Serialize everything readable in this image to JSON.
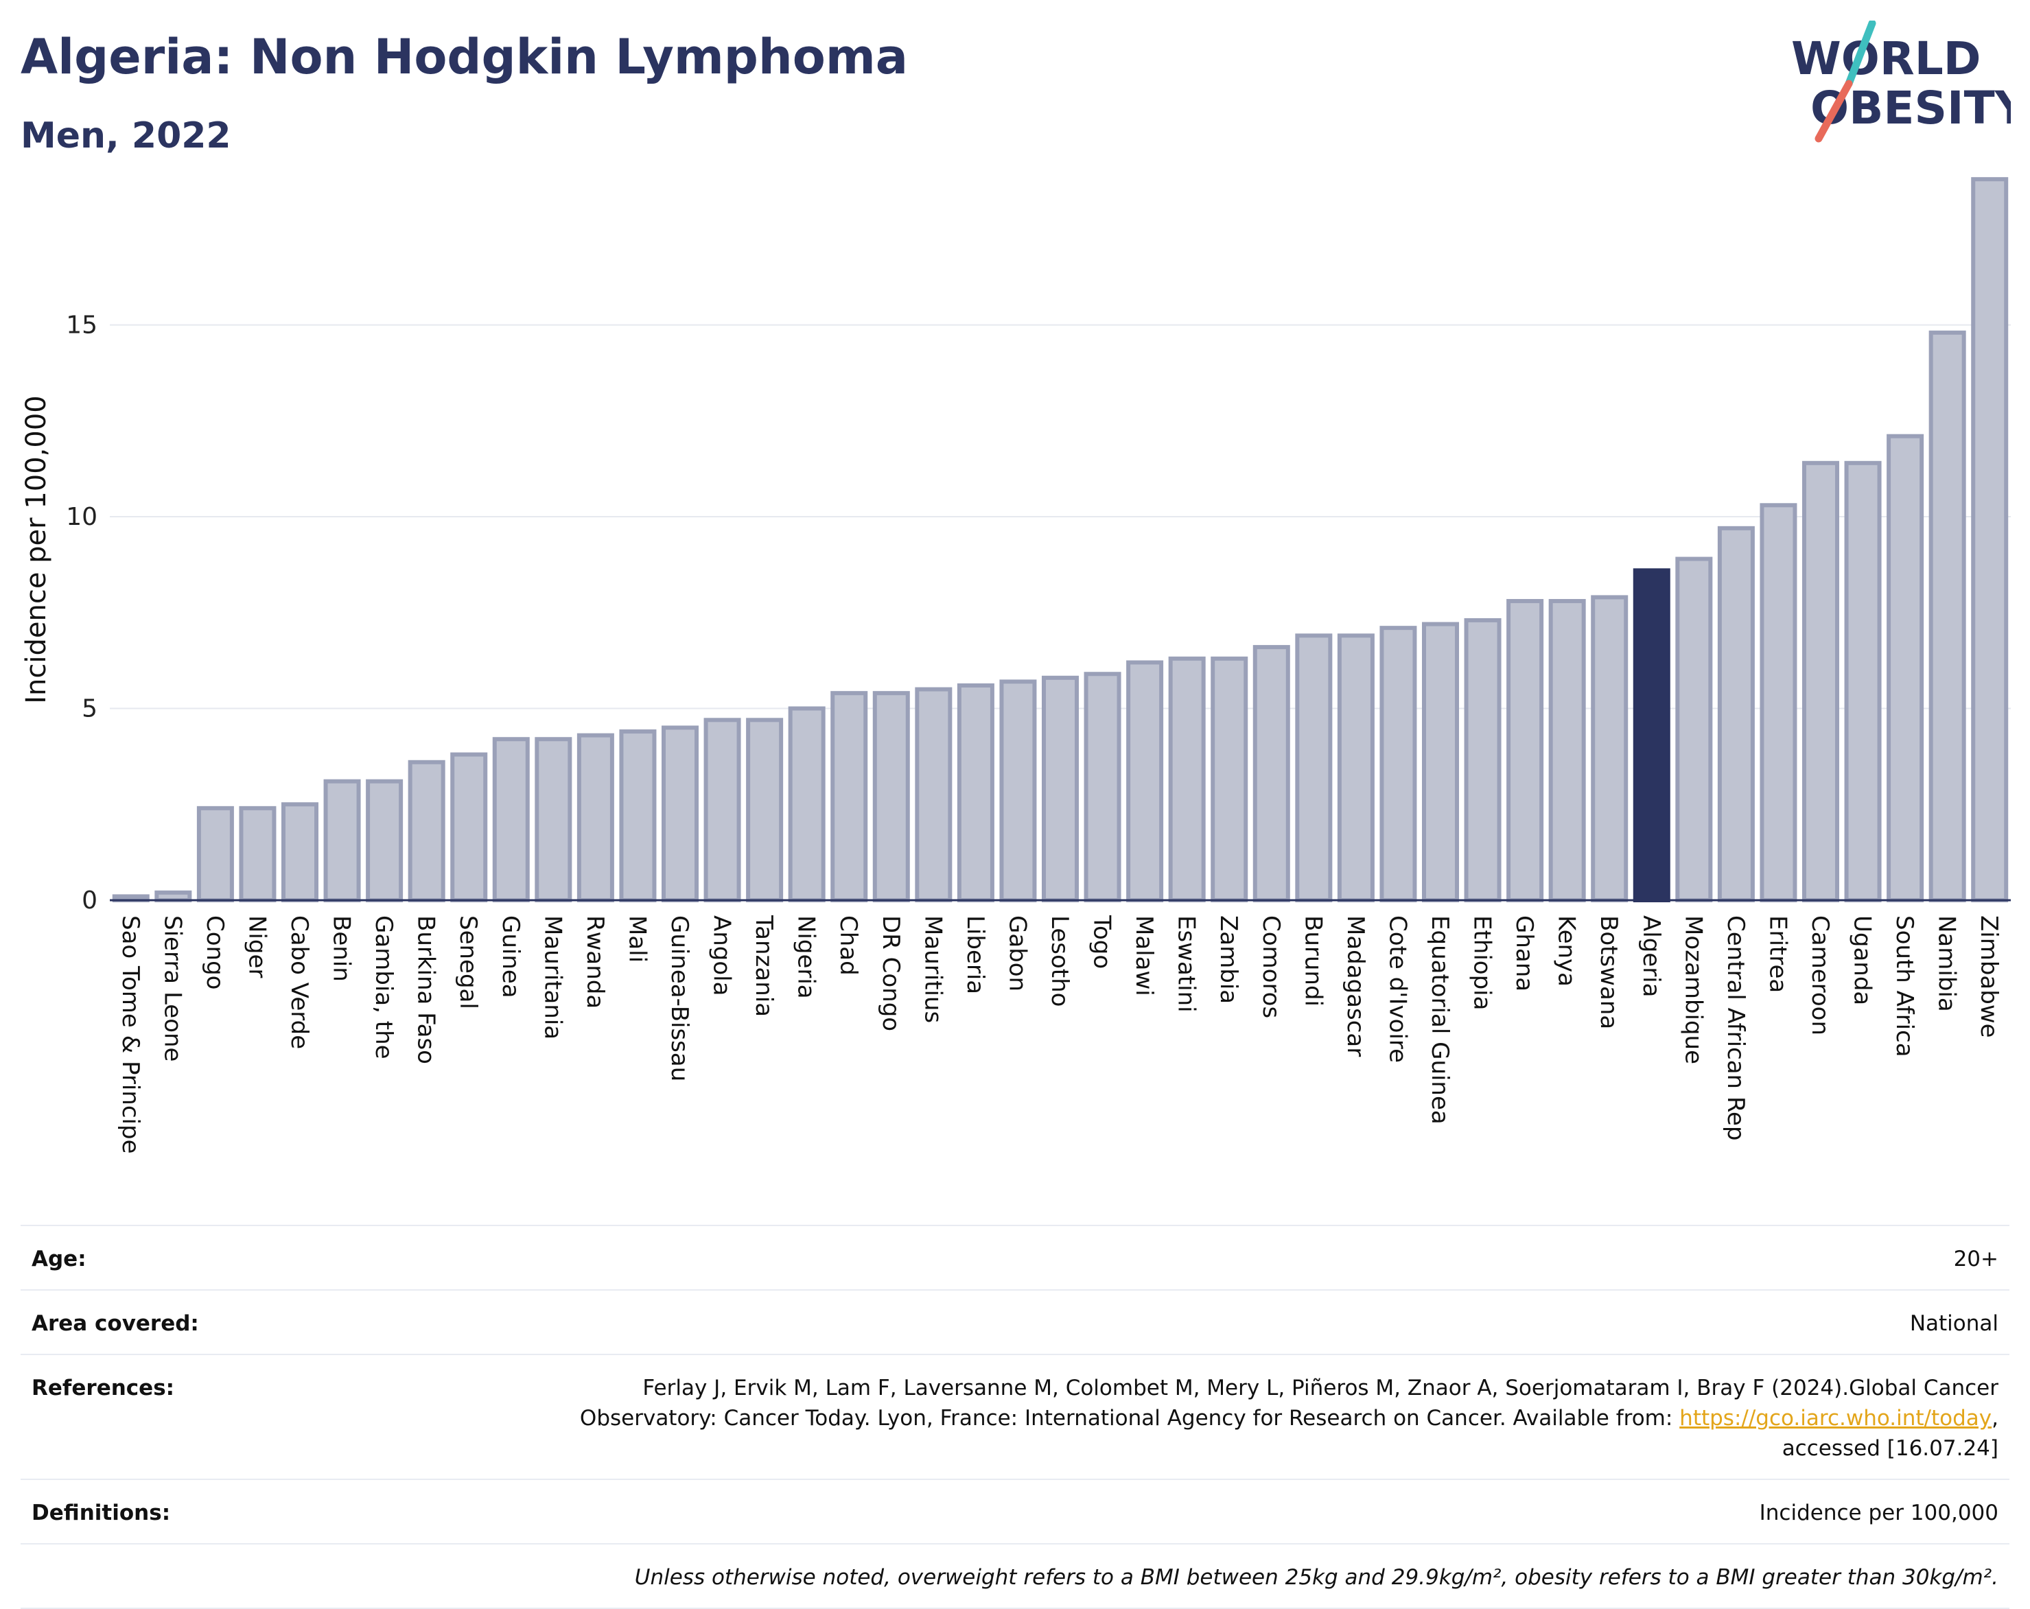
{
  "header": {
    "title": "Algeria: Non Hodgkin Lymphoma",
    "subtitle": "Men, 2022",
    "logo_line1": "WORLD",
    "logo_line2": "OBESITY"
  },
  "colors": {
    "bar": "#bfc3d1",
    "bar_edge": "#9aa0b8",
    "highlight": "#2b3460",
    "grid": "#e6e9ef",
    "text": "#2b3460",
    "link": "#e3a51a",
    "logo_teal": "#3fbfbf",
    "logo_coral": "#e86a5a"
  },
  "chart_data": {
    "type": "bar",
    "title": "Algeria: Non Hodgkin Lymphoma",
    "subtitle": "Men, 2022",
    "ylabel": "Incidence per 100,000",
    "xlabel": "",
    "ylim": [
      0,
      19
    ],
    "yticks": [
      0,
      5,
      10,
      15
    ],
    "grid": true,
    "highlight": "Algeria",
    "categories": [
      "Sao Tome & Principe",
      "Sierra Leone",
      "Congo",
      "Niger",
      "Cabo Verde",
      "Benin",
      "Gambia, the",
      "Burkina Faso",
      "Senegal",
      "Guinea",
      "Mauritania",
      "Rwanda",
      "Mali",
      "Guinea-Bissau",
      "Angola",
      "Tanzania",
      "Nigeria",
      "Chad",
      "DR Congo",
      "Mauritius",
      "Liberia",
      "Gabon",
      "Lesotho",
      "Togo",
      "Malawi",
      "Eswatini",
      "Zambia",
      "Comoros",
      "Burundi",
      "Madagascar",
      "Cote d'Ivoire",
      "Equatorial Guinea",
      "Ethiopia",
      "Ghana",
      "Kenya",
      "Botswana",
      "Algeria",
      "Mozambique",
      "Central African Rep",
      "Eritrea",
      "Cameroon",
      "Uganda",
      "South Africa",
      "Namibia",
      "Zimbabwe"
    ],
    "values": [
      0.1,
      0.2,
      2.4,
      2.4,
      2.5,
      3.1,
      3.1,
      3.6,
      3.8,
      4.2,
      4.2,
      4.3,
      4.4,
      4.5,
      4.7,
      4.7,
      5.0,
      5.4,
      5.4,
      5.5,
      5.6,
      5.7,
      5.8,
      5.9,
      6.2,
      6.3,
      6.3,
      6.6,
      6.9,
      6.9,
      7.1,
      7.2,
      7.3,
      7.8,
      7.8,
      7.9,
      8.6,
      8.9,
      9.7,
      10.3,
      11.4,
      11.4,
      12.1,
      14.8,
      18.8
    ]
  },
  "info": {
    "age_label": "Age:",
    "age_value": "20+",
    "area_label": "Area covered:",
    "area_value": "National",
    "references_label": "References:",
    "references_text1": "Ferlay J, Ervik M, Lam F, Laversanne M, Colombet M, Mery L, Piñeros M, Znaor A, Soerjomataram I, Bray F (2024).Global Cancer",
    "references_text2": "Observatory: Cancer Today. Lyon, France: International Agency for Research on Cancer. Available from: ",
    "references_link": "https://gco.iarc.who.int/today",
    "references_text3": ",",
    "references_text4": "accessed [16.07.24]",
    "definitions_label": "Definitions:",
    "definitions_value": "Incidence per 100,000",
    "footnote": "Unless otherwise noted, overweight refers to a BMI between 25kg and 29.9kg/m², obesity refers to a BMI greater than 30kg/m²."
  }
}
